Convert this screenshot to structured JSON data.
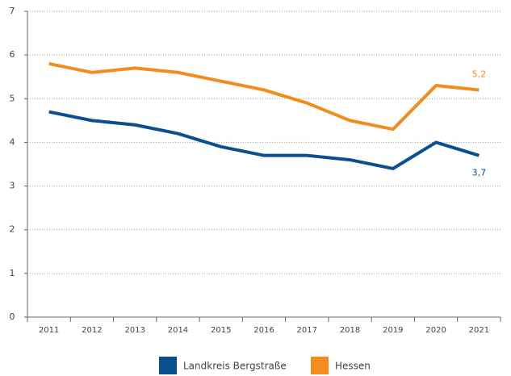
{
  "chart_data": {
    "type": "line",
    "categories": [
      "2011",
      "2012",
      "2013",
      "2014",
      "2015",
      "2016",
      "2017",
      "2018",
      "2019",
      "2020",
      "2021"
    ],
    "series": [
      {
        "name": "Landkreis Bergstraße",
        "color": "#0b4f8f",
        "values": [
          4.7,
          4.5,
          4.4,
          4.2,
          3.9,
          3.7,
          3.7,
          3.6,
          3.4,
          4.0,
          3.7
        ],
        "value_labels": [
          null,
          null,
          null,
          null,
          null,
          null,
          null,
          null,
          null,
          null,
          "3,7"
        ]
      },
      {
        "name": "Hessen",
        "color": "#f28c1f",
        "values": [
          5.8,
          5.6,
          5.7,
          5.6,
          5.4,
          5.2,
          4.9,
          4.5,
          4.3,
          5.3,
          5.2
        ],
        "value_labels": [
          null,
          null,
          null,
          null,
          null,
          null,
          null,
          null,
          null,
          null,
          "5,2"
        ]
      }
    ],
    "ylim": [
      0,
      7
    ],
    "yticks": [
      0,
      1,
      2,
      3,
      4,
      5,
      6,
      7
    ],
    "grid": true,
    "legend": "bottom"
  }
}
